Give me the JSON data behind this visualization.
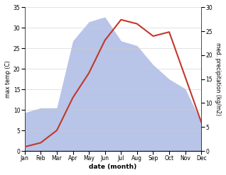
{
  "months": [
    "Jan",
    "Feb",
    "Mar",
    "Apr",
    "May",
    "Jun",
    "Jul",
    "Aug",
    "Sep",
    "Oct",
    "Nov",
    "Dec"
  ],
  "temp": [
    1,
    2,
    5,
    13,
    19,
    27,
    32,
    31,
    28,
    29,
    18,
    7
  ],
  "precip": [
    8,
    9,
    9,
    23,
    27,
    28,
    23,
    22,
    18,
    15,
    13,
    6
  ],
  "temp_color": "#c0392b",
  "precip_fill_color": "#b8c4e8",
  "ylabel_left": "max temp (C)",
  "ylabel_right": "med. precipitation (kg/m2)",
  "xlabel": "date (month)",
  "ylim_left": [
    0,
    35
  ],
  "ylim_right": [
    0,
    30
  ],
  "yticks_left": [
    0,
    5,
    10,
    15,
    20,
    25,
    30,
    35
  ],
  "yticks_right": [
    0,
    5,
    10,
    15,
    20,
    25,
    30
  ],
  "temp_linewidth": 1.5
}
